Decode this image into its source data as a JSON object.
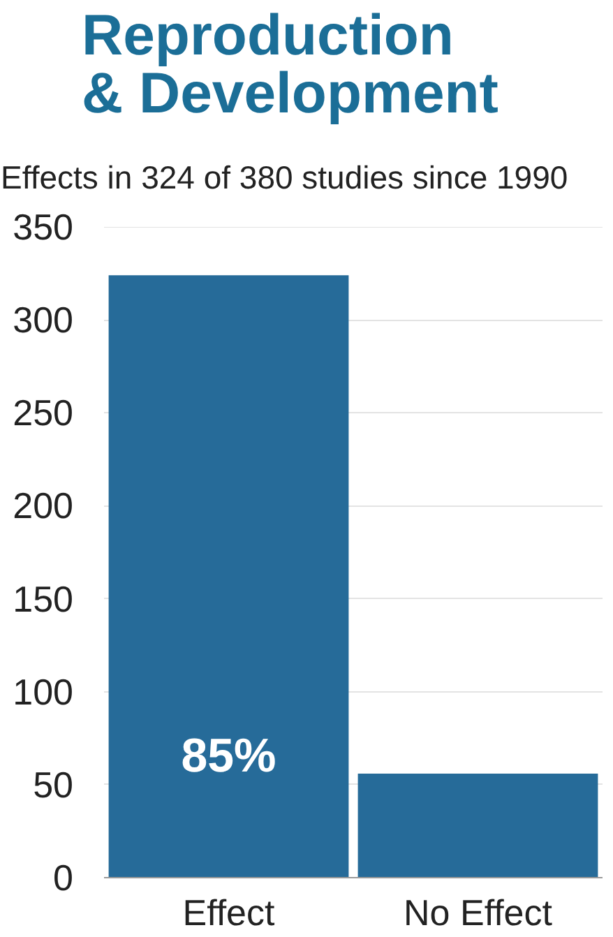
{
  "chart_data": {
    "type": "bar",
    "title": "Reproduction\n& Development",
    "subtitle": "Effects in 324 of 380 studies since 1990",
    "categories": [
      "Effect",
      "No Effect"
    ],
    "values": [
      324,
      56
    ],
    "color": "#266b99",
    "annotations": [
      "85%"
    ],
    "ylim": [
      0,
      350
    ],
    "yticks": [
      0,
      50,
      100,
      150,
      200,
      250,
      300,
      350
    ],
    "grid": "y"
  }
}
